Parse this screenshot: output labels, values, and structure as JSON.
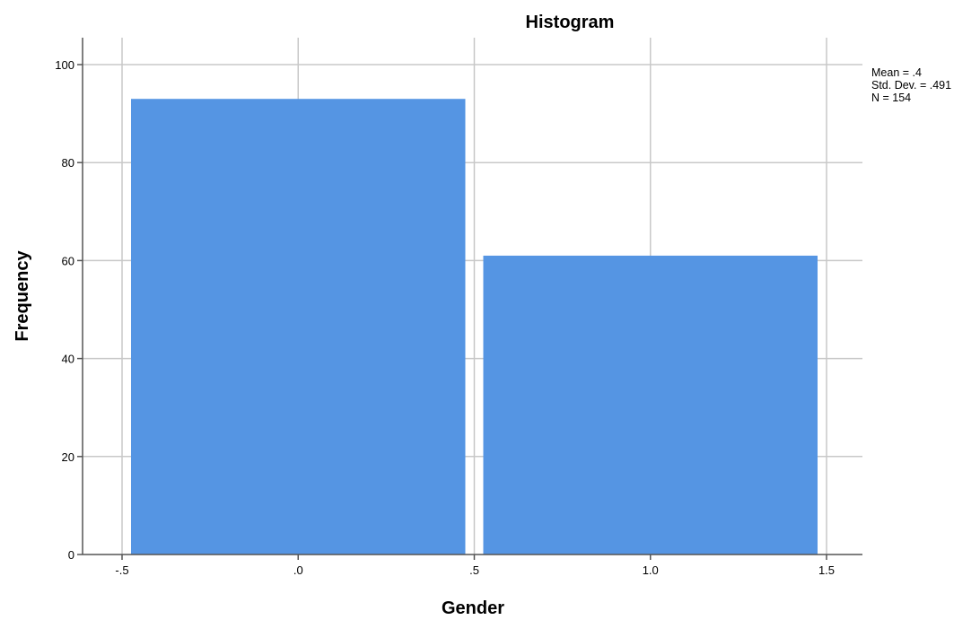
{
  "chart_data": {
    "type": "bar",
    "title": "Histogram",
    "xlabel": "Gender",
    "ylabel": "Frequency",
    "bins": [
      {
        "x0": -0.5,
        "x1": 0.5,
        "count": 93
      },
      {
        "x0": 0.5,
        "x1": 1.5,
        "count": 61
      }
    ],
    "xlim": [
      -0.5,
      1.5
    ],
    "ylim": [
      0,
      100
    ],
    "x_ticks": [
      -0.5,
      0.0,
      0.5,
      1.0,
      1.5
    ],
    "x_tick_labels": [
      "-.5",
      ".0",
      ".5",
      "1.0",
      "1.5"
    ],
    "y_ticks": [
      0,
      20,
      40,
      60,
      80,
      100
    ],
    "y_tick_labels": [
      "0",
      "20",
      "40",
      "60",
      "80",
      "100"
    ],
    "grid": true,
    "bar_color": "#5595E3",
    "stats": {
      "mean": "Mean = .4",
      "std_dev": "Std. Dev. = .491",
      "n": "N = 154"
    },
    "legend_placement": "top-right"
  }
}
